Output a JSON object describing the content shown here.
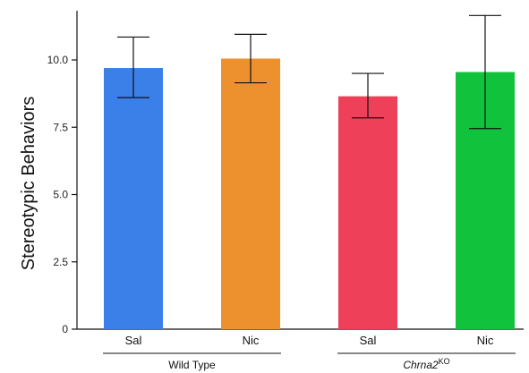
{
  "chart_data": {
    "type": "bar",
    "title": "",
    "xlabel": "",
    "ylabel": "Stereotypic Behaviors",
    "ylim": [
      0,
      12
    ],
    "yticks": [
      0,
      2.5,
      5.0,
      7.5,
      10.0
    ],
    "ytick_labels": [
      "0",
      "2.5",
      "5.0",
      "7.5",
      "10.0"
    ],
    "grid": false,
    "legend": "none",
    "categories": [
      "Sal",
      "Nic",
      "Sal",
      "Nic"
    ],
    "values": [
      9.7,
      10.05,
      8.65,
      9.55
    ],
    "error_low": [
      8.6,
      9.15,
      7.85,
      7.45
    ],
    "error_high": [
      10.85,
      10.95,
      9.5,
      11.65
    ],
    "colors": [
      "#3b7fe8",
      "#ed912f",
      "#ee4058",
      "#11c33c"
    ],
    "groups": [
      {
        "label": "Wild Type",
        "label_main": "",
        "label_sup": "",
        "members": [
          0,
          1
        ]
      },
      {
        "label": "",
        "label_main": "Chrna2",
        "label_sup": "KO",
        "members": [
          2,
          3
        ]
      }
    ]
  }
}
